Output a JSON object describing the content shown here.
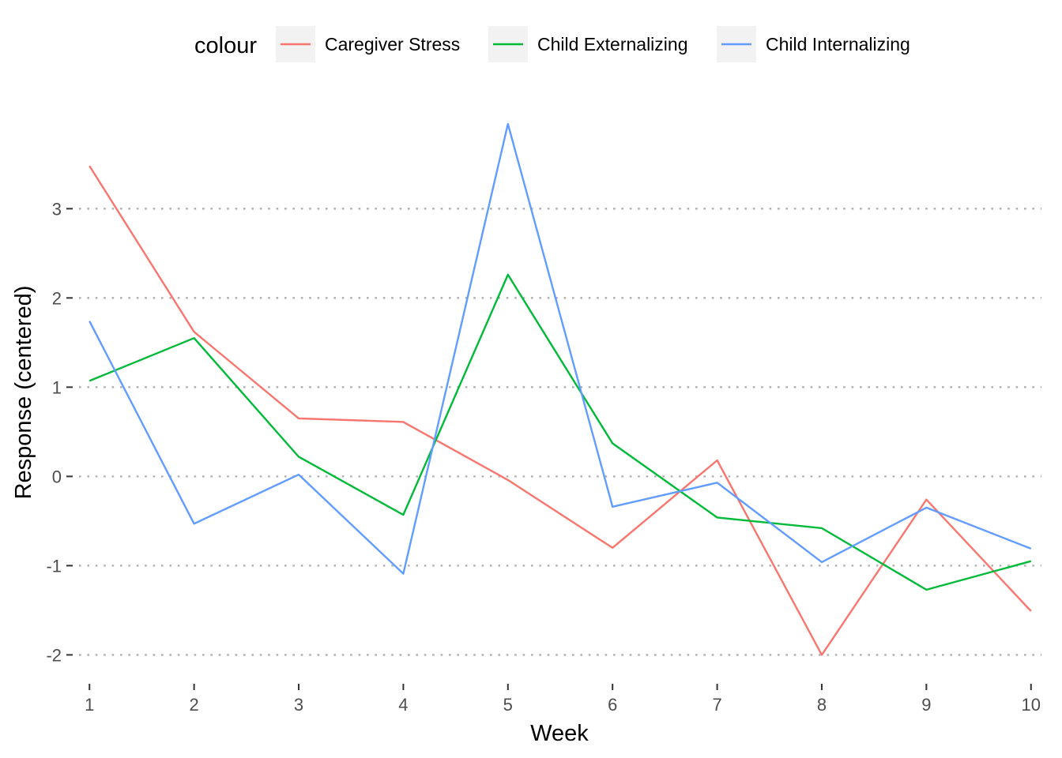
{
  "chart_data": {
    "type": "line",
    "xlabel": "Week",
    "ylabel": "Response (centered)",
    "x": [
      1,
      2,
      3,
      4,
      5,
      6,
      7,
      8,
      9,
      10
    ],
    "xlim": [
      0.9,
      10.1
    ],
    "ylim": [
      -2.2,
      4.1
    ],
    "y_ticks": [
      -2,
      -1,
      0,
      1,
      2,
      3
    ],
    "grid": "horizontal dotted major lines only",
    "legend": {
      "title": "colour",
      "placement": "top"
    },
    "series": [
      {
        "name": "Caregiver Stress",
        "color": "#F8766D",
        "values": [
          3.48,
          1.62,
          0.65,
          0.61,
          -0.04,
          -0.8,
          0.18,
          -2.0,
          -0.26,
          -1.51
        ]
      },
      {
        "name": "Child Externalizing",
        "color": "#00BA38",
        "values": [
          1.07,
          1.55,
          0.22,
          -0.43,
          2.26,
          0.37,
          -0.46,
          -0.58,
          -1.27,
          -0.95
        ]
      },
      {
        "name": "Child Internalizing",
        "color": "#619CFF",
        "values": [
          1.74,
          -0.53,
          0.02,
          -1.09,
          3.95,
          -0.34,
          -0.07,
          -0.96,
          -0.35,
          -0.81
        ]
      }
    ]
  }
}
